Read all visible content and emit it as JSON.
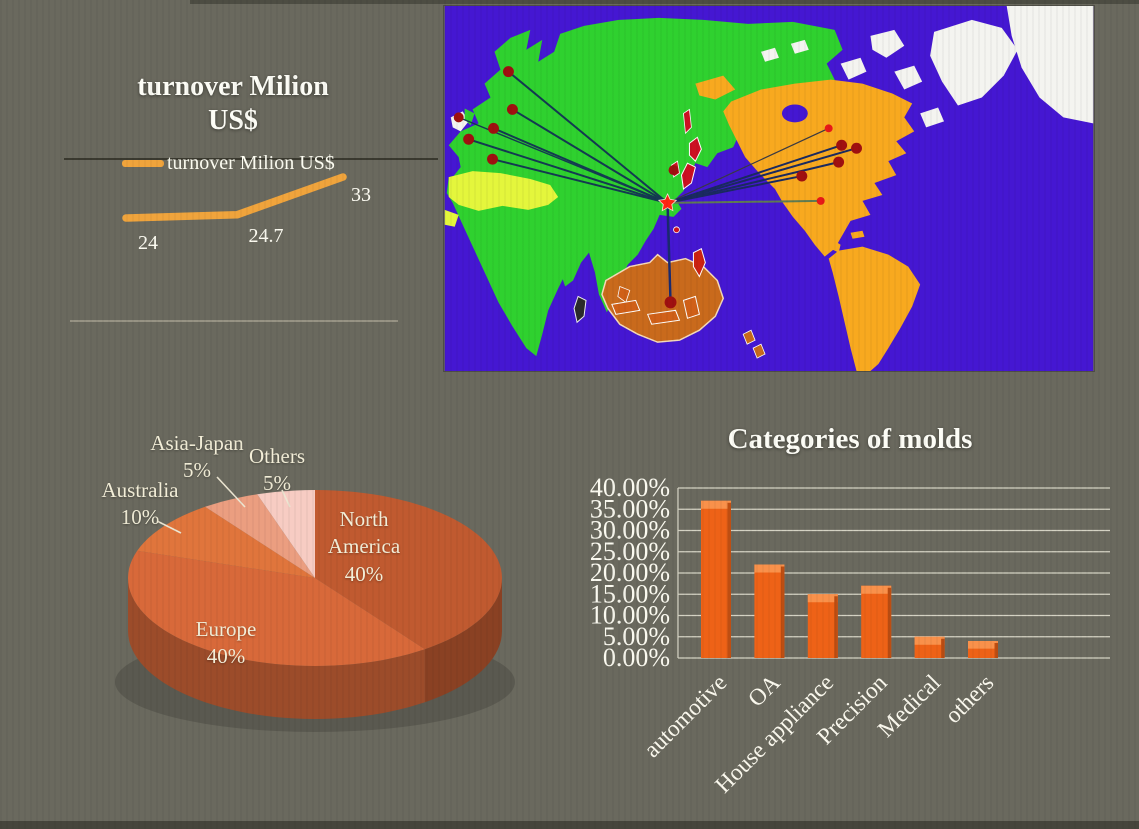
{
  "slide": {
    "background_color": "#6a695e"
  },
  "colors": {
    "title_text": "#fdfdf6",
    "label_text": "#f3eed8",
    "gridline": "#dbd9ca",
    "rule_dark": "#3a392f"
  },
  "chart_data": [
    {
      "type": "line",
      "title": "turnover Milion US$",
      "legend": [
        "turnover Milion US$"
      ],
      "x_labels": [
        "",
        "",
        ""
      ],
      "values": [
        24,
        24.7,
        33
      ],
      "data_labels": [
        "24",
        "24.7",
        "33"
      ],
      "line_color": "#f0a43c",
      "grid": false,
      "legend_position": "top"
    },
    {
      "type": "pie",
      "style": "3d",
      "title": "",
      "categories": [
        "North America",
        "Europe",
        "Australia",
        "Asia-Japan",
        "Others"
      ],
      "values": [
        40,
        40,
        10,
        5,
        5
      ],
      "data_labels": [
        "40%",
        "40%",
        "10%",
        "5%",
        "5%"
      ],
      "colors": [
        "#c05a30",
        "#d8693a",
        "#e0753c",
        "#eb9e80",
        "#f7ccc3"
      ],
      "start_angle_deg": 0,
      "direction": "clockwise"
    },
    {
      "type": "bar",
      "title": "Categories of molds",
      "categories": [
        "automotive",
        "OA",
        "House appliance",
        "Precision",
        "Medical",
        "others"
      ],
      "values": [
        37,
        22,
        15,
        17,
        5,
        4
      ],
      "unit": "percent",
      "ylim": [
        0,
        40
      ],
      "ytick_labels": [
        "40.00%",
        "35.00%",
        "30.00%",
        "25.00%",
        "20.00%",
        "15.00%",
        "10.00%",
        "5.00%",
        "0.00%"
      ],
      "grid": true,
      "bar_color": "#ee6217",
      "xlabel_rotation_deg": -45
    }
  ],
  "map": {
    "ocean_color": "#4517d2",
    "eurasia_africa_color": "#2fd12f",
    "americas_color": "#f8a91f",
    "australia_color": "#c96a1c",
    "desert_color": "#e4f63c",
    "arctic_color": "#f4f4f0",
    "marker_color": "#a01010",
    "highlight_marker_color": "#e81818",
    "hub_color": "#ff2512",
    "route_color": "#143a52"
  }
}
